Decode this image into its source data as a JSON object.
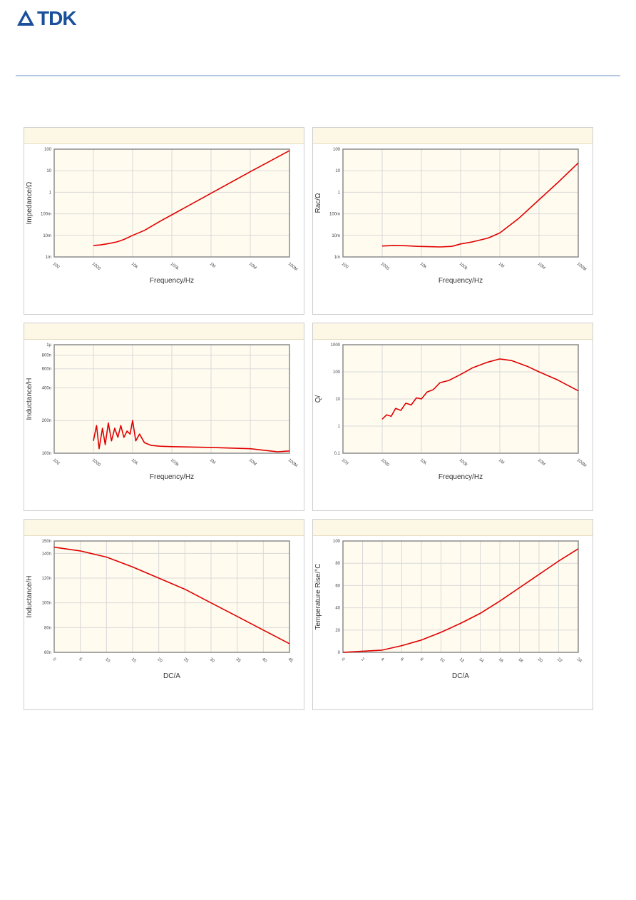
{
  "brand": {
    "name": "TDK",
    "color": "#1a4f9c"
  },
  "colors": {
    "plot_bg": "#fffbef",
    "grid": "#d9d9d9",
    "frame": "#8c8c8c",
    "curve": "#e00000",
    "header_bg": "#fdf7e6"
  },
  "chart_data": [
    {
      "id": "impedance",
      "type": "line",
      "xscale": "log",
      "yscale": "log",
      "xlabel": "Frequency/Hz",
      "ylabel": "Impedance/Ω",
      "xlim": [
        100,
        10000000
      ],
      "ylim": [
        0.001,
        100
      ],
      "xticks": [
        {
          "v": 100,
          "label": "100"
        },
        {
          "v": 1000,
          "label": "1000"
        },
        {
          "v": 10000,
          "label": "10k"
        },
        {
          "v": 100000,
          "label": "100k"
        },
        {
          "v": 1000000,
          "label": "1M"
        },
        {
          "v": 10000000,
          "label": "10M"
        },
        {
          "v": 100000000,
          "label": "100M"
        }
      ],
      "yticks": [
        {
          "v": 0.001,
          "label": "1m"
        },
        {
          "v": 0.01,
          "label": "10m"
        },
        {
          "v": 0.1,
          "label": "100m"
        },
        {
          "v": 1,
          "label": "1"
        },
        {
          "v": 10,
          "label": "10"
        },
        {
          "v": 100,
          "label": "100"
        }
      ],
      "xmax_plot": 100000000,
      "series": [
        {
          "x": [
            1000,
            1500,
            2500,
            4000,
            6000,
            10000,
            20000,
            50000,
            100000,
            1000000,
            10000000,
            100000000
          ],
          "y": [
            0.0034,
            0.0036,
            0.0042,
            0.005,
            0.0065,
            0.01,
            0.017,
            0.045,
            0.09,
            0.9,
            9,
            85
          ]
        }
      ]
    },
    {
      "id": "rac",
      "type": "line",
      "xscale": "log",
      "yscale": "log",
      "xlabel": "Frequency/Hz",
      "ylabel": "Rac/Ω",
      "xlim": [
        100,
        100000000
      ],
      "ylim": [
        0.001,
        100
      ],
      "xticks": [
        {
          "v": 100,
          "label": "100"
        },
        {
          "v": 1000,
          "label": "1000"
        },
        {
          "v": 10000,
          "label": "10k"
        },
        {
          "v": 100000,
          "label": "100k"
        },
        {
          "v": 1000000,
          "label": "1M"
        },
        {
          "v": 10000000,
          "label": "10M"
        },
        {
          "v": 100000000,
          "label": "100M"
        }
      ],
      "yticks": [
        {
          "v": 0.001,
          "label": "1m"
        },
        {
          "v": 0.01,
          "label": "10m"
        },
        {
          "v": 0.1,
          "label": "100m"
        },
        {
          "v": 1,
          "label": "1"
        },
        {
          "v": 10,
          "label": "10"
        },
        {
          "v": 100,
          "label": "100"
        }
      ],
      "series": [
        {
          "x": [
            1000,
            2000,
            4000,
            8000,
            15000,
            30000,
            60000,
            100000,
            200000,
            500000,
            1000000,
            3000000,
            10000000,
            30000000,
            100000000
          ],
          "y": [
            0.0032,
            0.0034,
            0.0033,
            0.0031,
            0.003,
            0.0029,
            0.0031,
            0.004,
            0.005,
            0.0075,
            0.013,
            0.06,
            0.45,
            2.8,
            23
          ]
        }
      ]
    },
    {
      "id": "inductance-frequency",
      "type": "line",
      "xscale": "log",
      "yscale": "log",
      "xlabel": "Frequency/Hz",
      "ylabel": "Inductance/H",
      "xlim": [
        100,
        100000000
      ],
      "ylim": [
        1e-07,
        1e-06
      ],
      "xticks": [
        {
          "v": 100,
          "label": "100"
        },
        {
          "v": 1000,
          "label": "1000"
        },
        {
          "v": 10000,
          "label": "10k"
        },
        {
          "v": 100000,
          "label": "100k"
        },
        {
          "v": 1000000,
          "label": "1M"
        },
        {
          "v": 10000000,
          "label": "10M"
        },
        {
          "v": 100000000,
          "label": "100M"
        }
      ],
      "yticks": [
        {
          "v": 1e-07,
          "label": "100n"
        },
        {
          "v": 2e-07,
          "label": "200n"
        },
        {
          "v": 4e-07,
          "label": "400n"
        },
        {
          "v": 6e-07,
          "label": "600n"
        },
        {
          "v": 8e-07,
          "label": "800n"
        },
        {
          "v": 1e-06,
          "label": "1µ"
        }
      ],
      "series": [
        {
          "x": [
            1000,
            1200,
            1400,
            1700,
            2000,
            2400,
            2900,
            3500,
            4200,
            5000,
            6000,
            7200,
            8600,
            10000,
            12000,
            15000,
            20000,
            30000,
            50000,
            100000,
            1000000,
            10000000,
            50000000,
            100000000
          ],
          "y": [
            1.3e-07,
            1.8e-07,
            1.1e-07,
            1.7e-07,
            1.2e-07,
            1.9e-07,
            1.3e-07,
            1.7e-07,
            1.4e-07,
            1.8e-07,
            1.4e-07,
            1.6e-07,
            1.5e-07,
            2e-07,
            1.3e-07,
            1.5e-07,
            1.25e-07,
            1.18e-07,
            1.16e-07,
            1.15e-07,
            1.13e-07,
            1.1e-07,
            1.03e-07,
            1.05e-07
          ]
        }
      ]
    },
    {
      "id": "q-factor",
      "type": "line",
      "xscale": "log",
      "yscale": "log",
      "xlabel": "Frequency/Hz",
      "ylabel": "Q/",
      "xlim": [
        100,
        100000000
      ],
      "ylim": [
        0.1,
        1000
      ],
      "xticks": [
        {
          "v": 100,
          "label": "100"
        },
        {
          "v": 1000,
          "label": "1000"
        },
        {
          "v": 10000,
          "label": "10k"
        },
        {
          "v": 100000,
          "label": "100k"
        },
        {
          "v": 1000000,
          "label": "1M"
        },
        {
          "v": 10000000,
          "label": "10M"
        },
        {
          "v": 100000000,
          "label": "100M"
        }
      ],
      "yticks": [
        {
          "v": 0.1,
          "label": "0.1"
        },
        {
          "v": 1,
          "label": "1"
        },
        {
          "v": 10,
          "label": "10"
        },
        {
          "v": 100,
          "label": "100"
        },
        {
          "v": 1000,
          "label": "1000"
        }
      ],
      "series": [
        {
          "x": [
            1000,
            1300,
            1700,
            2200,
            3000,
            4000,
            5500,
            7500,
            10000,
            14000,
            20000,
            30000,
            50000,
            100000,
            200000,
            500000,
            1000000,
            2000000,
            5000000,
            10000000,
            30000000,
            100000000
          ],
          "y": [
            1.8,
            2.6,
            2.3,
            4.5,
            3.8,
            7,
            6,
            11,
            10,
            18,
            22,
            40,
            48,
            80,
            140,
            230,
            300,
            260,
            160,
            100,
            50,
            20
          ]
        }
      ]
    },
    {
      "id": "inductance-dc",
      "type": "line",
      "xscale": "linear",
      "yscale": "linear",
      "xlabel": "DC/A",
      "ylabel": "Inductance/H",
      "xlim": [
        0,
        45
      ],
      "ylim": [
        6e-08,
        1.5e-07
      ],
      "xticks": [
        {
          "v": 0,
          "label": "0"
        },
        {
          "v": 5,
          "label": "5"
        },
        {
          "v": 10,
          "label": "10"
        },
        {
          "v": 15,
          "label": "15"
        },
        {
          "v": 20,
          "label": "20"
        },
        {
          "v": 25,
          "label": "25"
        },
        {
          "v": 30,
          "label": "30"
        },
        {
          "v": 35,
          "label": "35"
        },
        {
          "v": 40,
          "label": "40"
        },
        {
          "v": 45,
          "label": "45"
        }
      ],
      "yticks": [
        {
          "v": 6e-08,
          "label": "60n"
        },
        {
          "v": 8e-08,
          "label": "80n"
        },
        {
          "v": 1e-07,
          "label": "100n"
        },
        {
          "v": 1.2e-07,
          "label": "120n"
        },
        {
          "v": 1.4e-07,
          "label": "140n"
        },
        {
          "v": 1.5e-07,
          "label": "150n"
        }
      ],
      "series": [
        {
          "x": [
            0,
            5,
            10,
            15,
            20,
            25,
            30,
            35,
            40,
            45
          ],
          "y": [
            1.45e-07,
            1.42e-07,
            1.37e-07,
            1.29e-07,
            1.2e-07,
            1.11e-07,
            1e-07,
            8.9e-08,
            7.8e-08,
            6.7e-08
          ]
        }
      ]
    },
    {
      "id": "temperature-rise",
      "type": "line",
      "xscale": "linear",
      "yscale": "linear",
      "xlabel": "DC/A",
      "ylabel": "Temperature Rise/°C",
      "xlim": [
        0,
        24
      ],
      "ylim": [
        0,
        100
      ],
      "xticks": [
        {
          "v": 0,
          "label": "0"
        },
        {
          "v": 2,
          "label": "2"
        },
        {
          "v": 4,
          "label": "4"
        },
        {
          "v": 6,
          "label": "6"
        },
        {
          "v": 8,
          "label": "8"
        },
        {
          "v": 10,
          "label": "10"
        },
        {
          "v": 12,
          "label": "12"
        },
        {
          "v": 14,
          "label": "14"
        },
        {
          "v": 16,
          "label": "16"
        },
        {
          "v": 18,
          "label": "18"
        },
        {
          "v": 20,
          "label": "20"
        },
        {
          "v": 22,
          "label": "22"
        },
        {
          "v": 24,
          "label": "24"
        }
      ],
      "yticks": [
        {
          "v": 0,
          "label": "0"
        },
        {
          "v": 20,
          "label": "20"
        },
        {
          "v": 40,
          "label": "40"
        },
        {
          "v": 60,
          "label": "60"
        },
        {
          "v": 80,
          "label": "80"
        },
        {
          "v": 100,
          "label": "100"
        }
      ],
      "series": [
        {
          "x": [
            0,
            2,
            4,
            6,
            8,
            10,
            12,
            14,
            16,
            18,
            20,
            22,
            24
          ],
          "y": [
            0,
            1,
            2,
            6,
            11,
            18,
            26,
            35,
            46,
            58,
            70,
            82,
            93
          ]
        }
      ]
    }
  ]
}
